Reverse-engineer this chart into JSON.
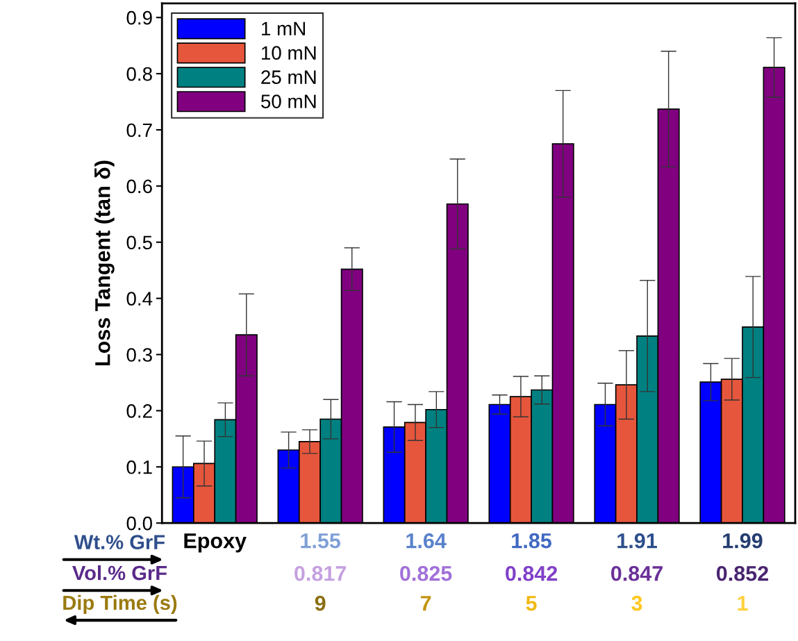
{
  "chart_data": {
    "type": "bar",
    "ylabel": "Loss Tangent (tan δ)",
    "categories": [
      "Epoxy",
      "1.55",
      "1.64",
      "1.85",
      "1.91",
      "1.99"
    ],
    "series": [
      {
        "name": "1 mN",
        "color": "#0000ff",
        "values": [
          0.1,
          0.13,
          0.171,
          0.211,
          0.211,
          0.251
        ],
        "errors": [
          0.055,
          0.032,
          0.045,
          0.017,
          0.038,
          0.033
        ]
      },
      {
        "name": "10 mN",
        "color": "#e6563c",
        "values": [
          0.106,
          0.145,
          0.179,
          0.225,
          0.246,
          0.256
        ],
        "errors": [
          0.04,
          0.021,
          0.032,
          0.036,
          0.061,
          0.037
        ]
      },
      {
        "name": "25 mN",
        "color": "#008080",
        "values": [
          0.184,
          0.185,
          0.202,
          0.237,
          0.333,
          0.349
        ],
        "errors": [
          0.03,
          0.035,
          0.032,
          0.025,
          0.099,
          0.09
        ]
      },
      {
        "name": "50 mN",
        "color": "#800080",
        "values": [
          0.335,
          0.452,
          0.568,
          0.675,
          0.737,
          0.811
        ],
        "errors": [
          0.073,
          0.038,
          0.08,
          0.095,
          0.103,
          0.053
        ]
      }
    ],
    "ylim": [
      0,
      0.925
    ],
    "yticks": [
      {
        "value": 0,
        "label": "0.0"
      },
      0.1,
      0.2,
      0.3,
      0.4,
      0.5,
      0.6,
      0.7,
      0.8,
      0.9
    ],
    "legend": "top left",
    "annotations": [
      "Wt.% GrF",
      "Vol.% GrF",
      "Dip Time (s)",
      "0.817",
      "0.825",
      "0.842",
      "0.847",
      "0.852",
      "9",
      "7",
      "5",
      "3",
      "1"
    ]
  }
}
